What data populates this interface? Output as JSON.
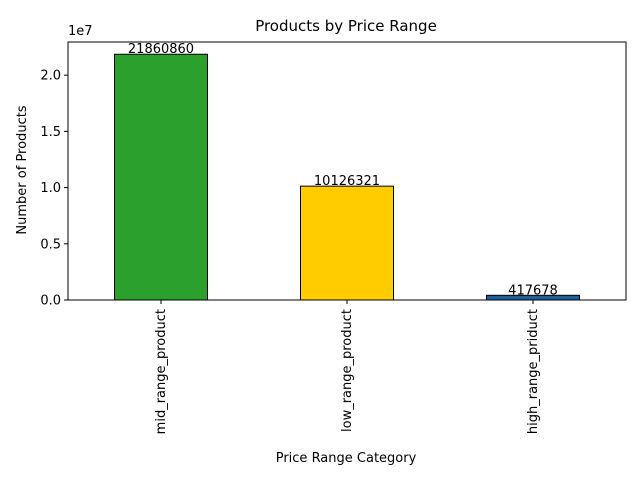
{
  "chart_data": {
    "type": "bar",
    "title": "Products by Price Range",
    "xlabel": "Price Range Category",
    "ylabel": "Number of Products",
    "y_offset_text": "1e7",
    "categories": [
      "mid_range_product",
      "low_range_product",
      "high_range_priduct"
    ],
    "values": [
      21860860,
      10126321,
      417678
    ],
    "data_labels": [
      "21860860",
      "10126321",
      "417678"
    ],
    "bar_colors": [
      "#2ca02c",
      "#ffcc00",
      "#1f5f99"
    ],
    "ylim": [
      0,
      22950000
    ],
    "yticks": [
      0,
      5000000,
      10000000,
      15000000,
      20000000
    ],
    "ytick_labels": [
      "0.0",
      "0.5",
      "1.0",
      "1.5",
      "2.0"
    ],
    "grid": false,
    "legend": "none"
  }
}
